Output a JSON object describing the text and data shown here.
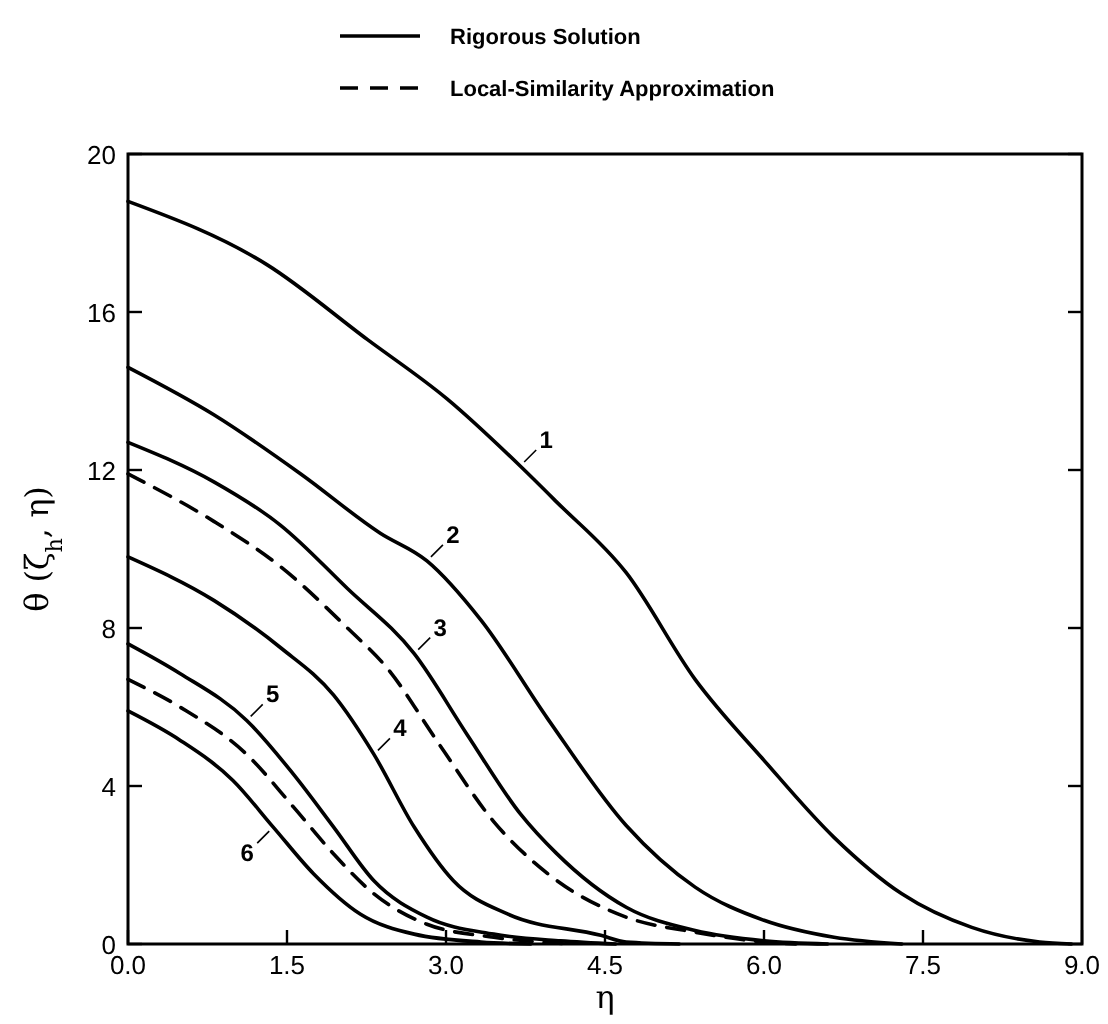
{
  "chart_data": {
    "type": "line",
    "xlabel": "η",
    "ylabel": "θ (ζ$_{h}$, η)",
    "xlim": [
      0,
      9
    ],
    "ylim": [
      0,
      20
    ],
    "xticks": [
      {
        "value": 0,
        "label": "0.0"
      },
      1.5,
      {
        "value": 3,
        "label": "3.0"
      },
      4.5,
      {
        "value": 6,
        "label": "6.0"
      },
      7.5,
      {
        "value": 9,
        "label": "9.0"
      }
    ],
    "yticks": [
      0,
      4,
      8,
      12,
      16,
      20
    ],
    "grid": false,
    "legend": "top",
    "marker": "none",
    "series": [
      {
        "name": "Rigorous Solution",
        "color": "#000000",
        "line_style": "solid",
        "x": [
          0,
          1.31,
          2.26,
          3.01,
          3.7,
          4.04,
          4.7,
          5.35,
          6.0,
          6.66,
          7.3,
          7.96,
          8.6,
          8.9
        ],
        "values": [
          18.8,
          17.2,
          15.3,
          13.8,
          12.1,
          11.2,
          9.4,
          6.7,
          4.65,
          2.7,
          1.27,
          0.42,
          0.05,
          0
        ]
      },
      {
        "color": "#000000",
        "line_style": "solid",
        "x": [
          0,
          0.81,
          1.63,
          2.38,
          2.82,
          3.33,
          3.96,
          4.7,
          5.35,
          6.0,
          6.66,
          7.3
        ],
        "values": [
          14.6,
          13.4,
          11.9,
          10.4,
          9.7,
          8.2,
          5.7,
          3.0,
          1.44,
          0.6,
          0.17,
          0
        ]
      },
      {
        "color": "#000000",
        "line_style": "solid",
        "x": [
          0,
          0.81,
          1.44,
          2.07,
          2.7,
          3.2,
          3.7,
          4.04,
          4.7,
          5.35,
          6.0,
          6.6
        ],
        "values": [
          12.7,
          11.7,
          10.6,
          9.0,
          7.35,
          5.3,
          3.3,
          2.3,
          0.93,
          0.34,
          0.08,
          0
        ]
      },
      {
        "name": "Local-Similarity Approximation",
        "color": "#000000",
        "line_style": "dashed",
        "x": [
          0,
          0.81,
          1.44,
          2.07,
          2.44,
          2.95,
          3.45,
          3.96,
          4.7,
          5.35,
          6.0,
          6.3
        ],
        "values": [
          11.9,
          10.7,
          9.55,
          8.0,
          7.0,
          5.0,
          3.1,
          1.78,
          0.68,
          0.3,
          0.05,
          0
        ]
      },
      {
        "color": "#000000",
        "line_style": "solid",
        "x": [
          0,
          0.81,
          1.44,
          1.94,
          2.32,
          2.7,
          3.07,
          3.58,
          4.46,
          4.7,
          5.2
        ],
        "values": [
          9.8,
          8.7,
          7.5,
          6.3,
          4.8,
          2.96,
          1.6,
          0.76,
          0.22,
          0.05,
          0
        ]
      },
      {
        "color": "#000000",
        "line_style": "solid",
        "x": [
          0,
          0.49,
          1.12,
          1.56,
          1.94,
          2.32,
          2.82,
          3.45,
          4.08,
          4.6
        ],
        "values": [
          7.6,
          6.85,
          5.66,
          4.3,
          2.96,
          1.6,
          0.68,
          0.25,
          0.08,
          0
        ]
      },
      {
        "color": "#000000",
        "line_style": "dashed",
        "x": [
          0,
          0.49,
          1.12,
          1.56,
          1.94,
          2.32,
          2.82,
          3.45,
          4.2
        ],
        "values": [
          6.7,
          6.0,
          4.8,
          3.47,
          2.28,
          1.27,
          0.5,
          0.17,
          0
        ]
      },
      {
        "color": "#000000",
        "line_style": "solid",
        "x": [
          0,
          0.49,
          0.99,
          1.37,
          1.75,
          2.19,
          2.7,
          3.33,
          3.8
        ],
        "values": [
          5.9,
          5.16,
          4.14,
          2.96,
          1.78,
          0.76,
          0.25,
          0.05,
          0
        ]
      }
    ],
    "annotations": [
      {
        "text": "1",
        "x": 3.7,
        "y": 12.1
      },
      {
        "text": "2",
        "x": 2.82,
        "y": 9.7
      },
      {
        "text": "3",
        "x": 2.7,
        "y": 7.35
      },
      {
        "text": "4",
        "x": 2.32,
        "y": 4.8
      },
      {
        "text": "5",
        "x": 1.12,
        "y": 5.66
      },
      {
        "text": "6",
        "x": 1.37,
        "y": 2.96
      }
    ]
  }
}
